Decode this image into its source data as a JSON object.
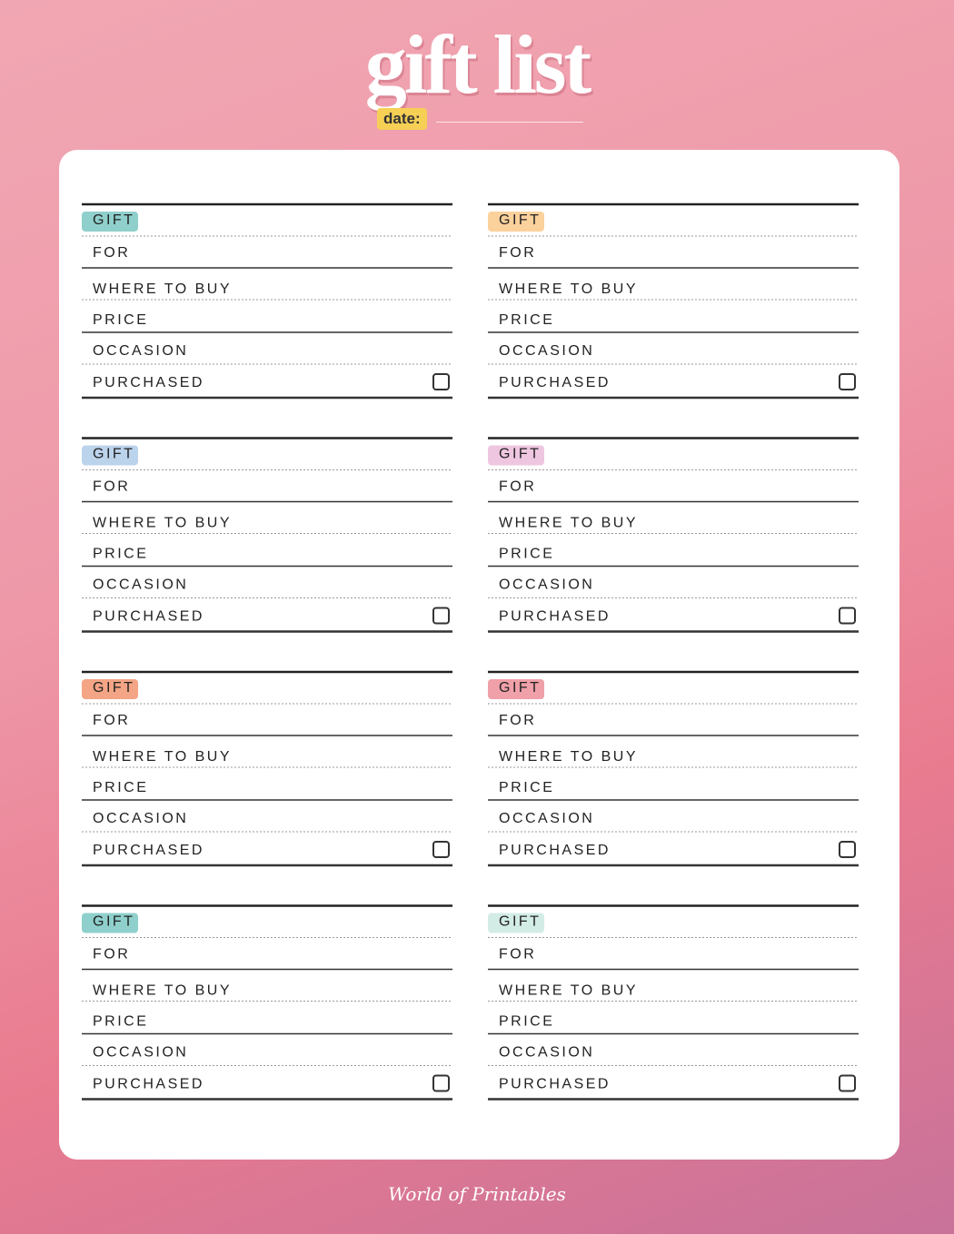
{
  "header": {
    "title": "gift list",
    "date_label": "date:"
  },
  "cards": [
    {
      "tag_color": "#8fd0cc",
      "fields": [
        "GIFT",
        "FOR",
        "WHERE TO BUY",
        "PRICE",
        "OCCASION",
        "PURCHASED"
      ]
    },
    {
      "tag_color": "#fbd19c",
      "fields": [
        "GIFT",
        "FOR",
        "WHERE TO BUY",
        "PRICE",
        "OCCASION",
        "PURCHASED"
      ]
    },
    {
      "tag_color": "#bcd3ec",
      "fields": [
        "GIFT",
        "FOR",
        "WHERE TO BUY",
        "PRICE",
        "OCCASION",
        "PURCHASED"
      ]
    },
    {
      "tag_color": "#efc6e0",
      "fields": [
        "GIFT",
        "FOR",
        "WHERE TO BUY",
        "PRICE",
        "OCCASION",
        "PURCHASED"
      ]
    },
    {
      "tag_color": "#f3a585",
      "fields": [
        "GIFT",
        "FOR",
        "WHERE TO BUY",
        "PRICE",
        "OCCASION",
        "PURCHASED"
      ]
    },
    {
      "tag_color": "#f0a0a8",
      "fields": [
        "GIFT",
        "FOR",
        "WHERE TO BUY",
        "PRICE",
        "OCCASION",
        "PURCHASED"
      ]
    },
    {
      "tag_color": "#8fd0cc",
      "fields": [
        "GIFT",
        "FOR",
        "WHERE TO BUY",
        "PRICE",
        "OCCASION",
        "PURCHASED"
      ]
    },
    {
      "tag_color": "#d3ece6",
      "fields": [
        "GIFT",
        "FOR",
        "WHERE TO BUY",
        "PRICE",
        "OCCASION",
        "PURCHASED"
      ]
    }
  ],
  "footer": {
    "brand": "World of Printables"
  }
}
